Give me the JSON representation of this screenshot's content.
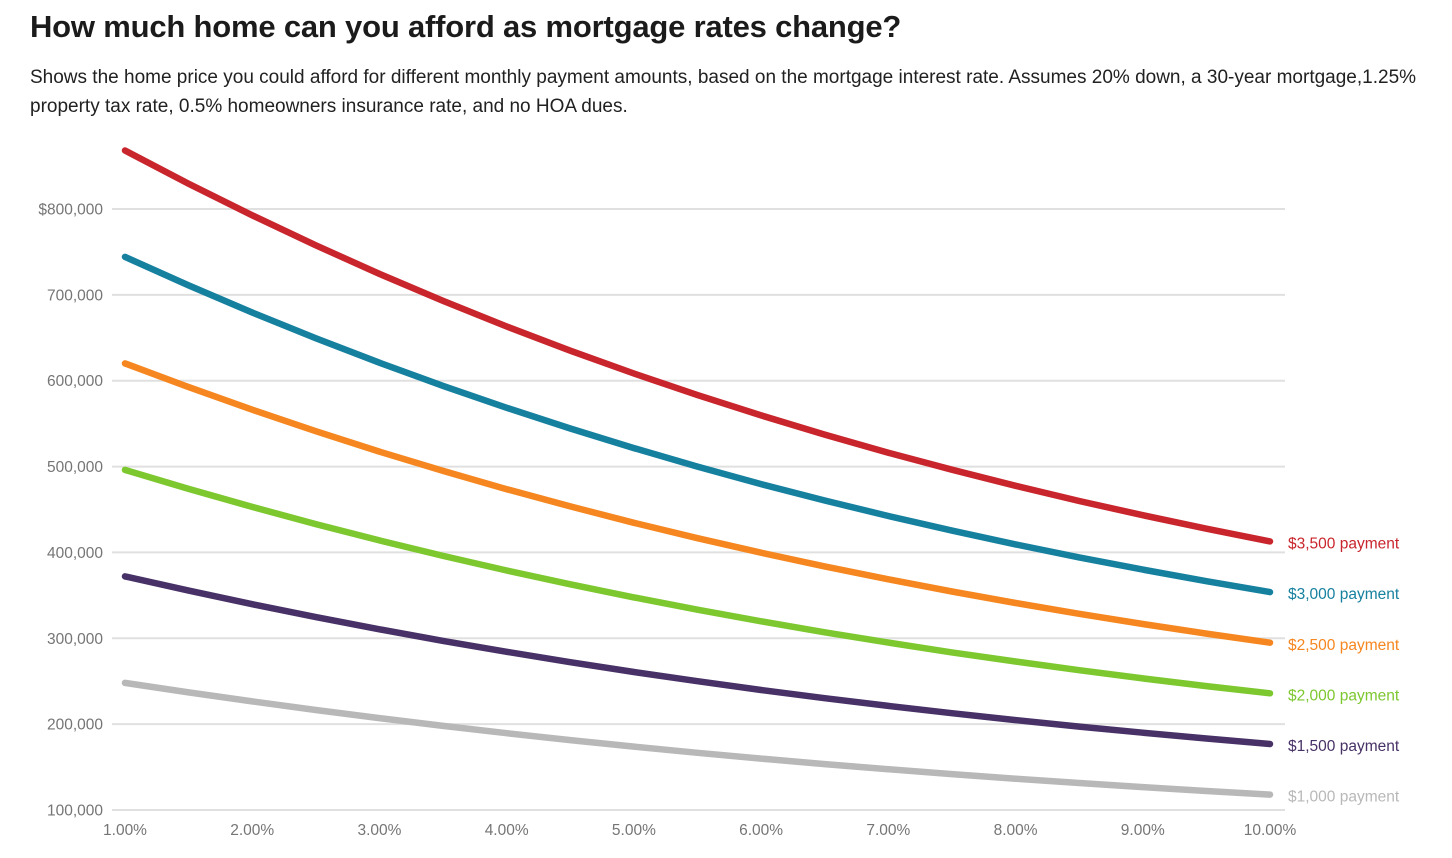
{
  "chart_data": {
    "type": "line",
    "title": "How much home can you afford as mortgage rates change?",
    "subtitle": "Shows the home price you could afford for different monthly payment amounts, based on the mortgage interest rate. Assumes 20% down, a 30-year mortgage,1.25% property tax rate, 0.5% homeowners insurance rate, and no HOA dues.",
    "xlabel": "",
    "ylabel": "",
    "xlim": [
      1,
      10
    ],
    "ylim": [
      100000,
      870000
    ],
    "grid": true,
    "legend_position": "right end-of-line labels",
    "x": [
      1.0,
      1.5,
      2.0,
      2.5,
      3.0,
      3.5,
      4.0,
      4.5,
      5.0,
      5.5,
      6.0,
      6.5,
      7.0,
      7.5,
      8.0,
      8.5,
      9.0,
      9.5,
      10.0
    ],
    "x_ticks": [
      1,
      2,
      3,
      4,
      5,
      6,
      7,
      8,
      9,
      10
    ],
    "x_tick_labels": [
      "1.00%",
      "2.00%",
      "3.00%",
      "4.00%",
      "5.00%",
      "6.00%",
      "7.00%",
      "8.00%",
      "9.00%",
      "10.00%"
    ],
    "y_ticks": [
      800000,
      700000,
      600000,
      500000,
      400000,
      300000,
      200000,
      100000
    ],
    "y_tick_labels": [
      "$800,000",
      "700,000",
      "600,000",
      "500,000",
      "400,000",
      "300,000",
      "200,000",
      "100,000"
    ],
    "series": [
      {
        "name": "$3,500 payment",
        "color": "#c9252c",
        "values": [
          868178,
          829525,
          792705,
          757691,
          724465,
          692976,
          663173,
          635002,
          608413,
          583272,
          559577,
          537233,
          516166,
          496307,
          477589,
          459942,
          443303,
          427602,
          412790
        ]
      },
      {
        "name": "$3,000 payment",
        "color": "#16809f",
        "values": [
          744153,
          711021,
          679461,
          649449,
          620970,
          593979,
          568434,
          544287,
          521475,
          499947,
          479637,
          460485,
          442428,
          425406,
          409362,
          394236,
          379974,
          366516,
          353820
        ]
      },
      {
        "name": "$2,500 payment",
        "color": "#f6861f",
        "values": [
          620127,
          592518,
          566218,
          541208,
          517475,
          494983,
          473695,
          453573,
          434563,
          416623,
          399698,
          383738,
          368690,
          354505,
          341135,
          328530,
          316645,
          305430,
          294850
        ]
      },
      {
        "name": "$2,000 payment",
        "color": "#7dc72f",
        "values": [
          496102,
          474014,
          452974,
          432966,
          413980,
          395986,
          378956,
          362858,
          347650,
          333298,
          319758,
          306990,
          294952,
          283604,
          272908,
          262824,
          253316,
          244344,
          235880
        ]
      },
      {
        "name": "$1,500 payment",
        "color": "#473166",
        "values": [
          372076,
          355511,
          339731,
          324725,
          310485,
          296990,
          284217,
          272144,
          260738,
          249974,
          239819,
          230243,
          221214,
          212703,
          204681,
          197118,
          189987,
          183258,
          176910
        ]
      },
      {
        "name": "$1,000 payment",
        "color": "#b8b8b8",
        "values": [
          248051,
          237007,
          226487,
          216483,
          206990,
          197993,
          189478,
          181429,
          173825,
          166649,
          159879,
          153495,
          147476,
          141802,
          136454,
          131412,
          126658,
          122172,
          117940
        ]
      }
    ],
    "colors": {
      "grid": "#e0e0e0",
      "axis_text": "#757575",
      "title_text": "#1b1b1b",
      "subtitle_text": "#212121",
      "background": "#ffffff"
    }
  }
}
